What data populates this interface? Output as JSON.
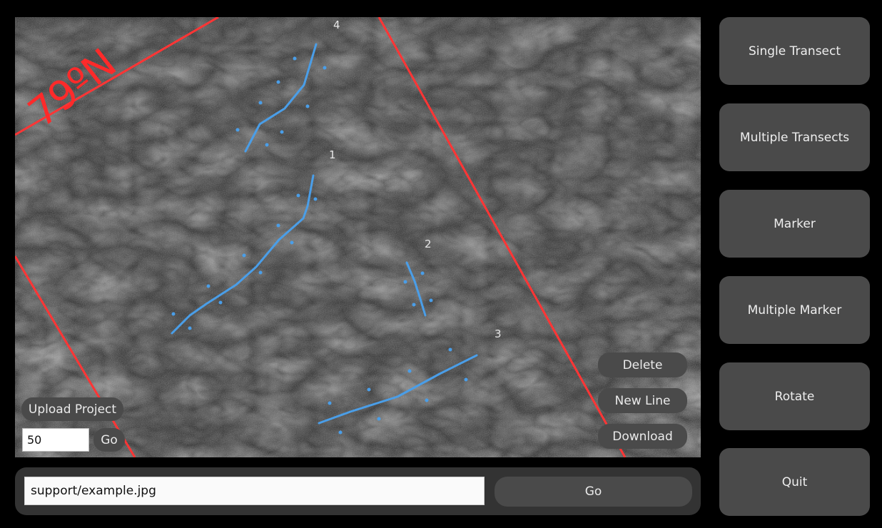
{
  "viewer": {
    "latitude_label": "79ºN",
    "transect_labels": [
      "1",
      "2",
      "3",
      "4"
    ],
    "upload_label": "Upload Project",
    "zoom_value": "50",
    "zoom_go_label": "Go",
    "delete_label": "Delete",
    "new_line_label": "New Line",
    "download_label": "Download"
  },
  "path_bar": {
    "path_value": "support/example.jpg",
    "go_label": "Go"
  },
  "tools": {
    "single_transect": "Single Transect",
    "multiple_transects": "Multiple Transects",
    "marker": "Marker",
    "multiple_marker": "Multiple Marker",
    "rotate": "Rotate",
    "quit": "Quit"
  },
  "colors": {
    "background": "#000000",
    "button": "#4a4a4a",
    "transect": "#4a9ee8",
    "grid_line": "#ff3030"
  },
  "icons": {}
}
